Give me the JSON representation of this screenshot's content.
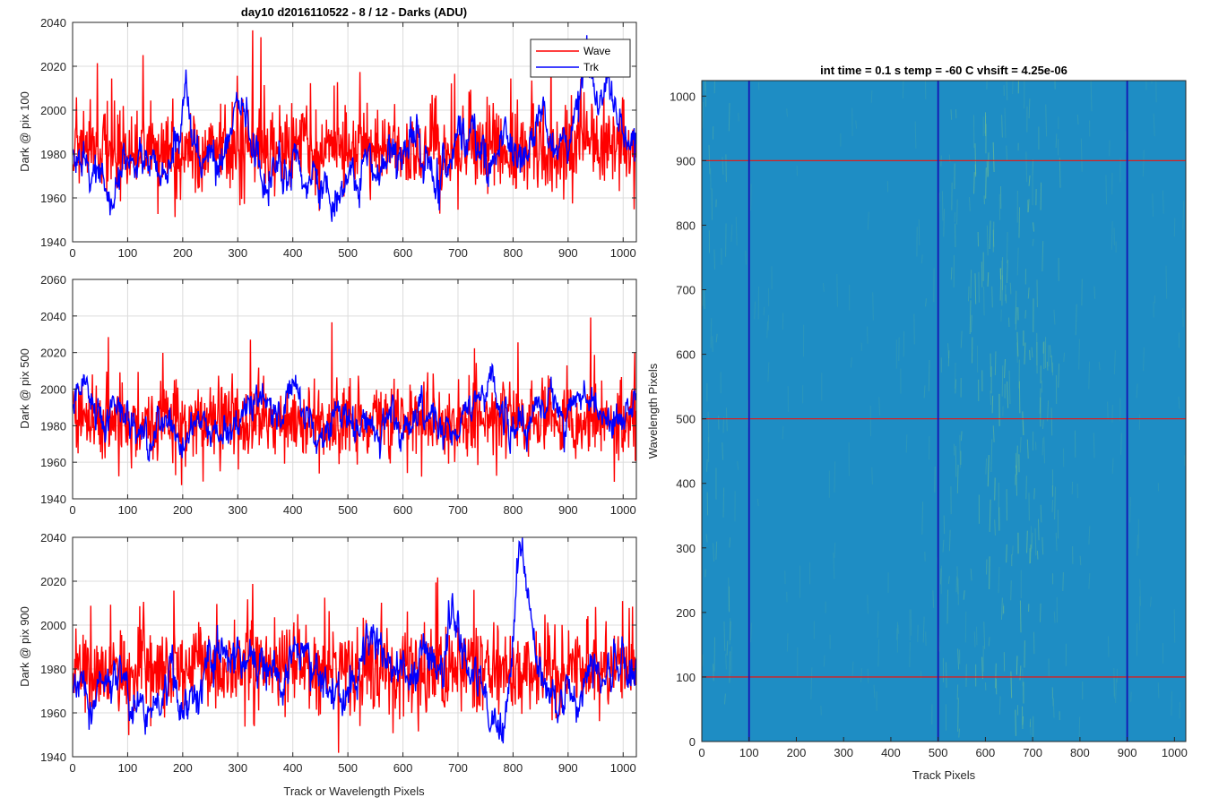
{
  "colors": {
    "wave": "#ff0000",
    "trk": "#0000ff",
    "grid": "#dcdcdc",
    "axis": "#262626",
    "image_base": "#1e8dc4",
    "image_hot": "#79c48c",
    "marker_h": "#d62020",
    "marker_v": "#1414b4"
  },
  "chart_data": [
    {
      "type": "line",
      "title": "day10 d2016110522 - 8 / 12 - Darks (ADU)",
      "xlabel": "",
      "ylabel": "Dark @ pix 100",
      "xlim": [
        0,
        1024
      ],
      "ylim": [
        1940,
        2040
      ],
      "xticks": [
        0,
        100,
        200,
        300,
        400,
        500,
        600,
        700,
        800,
        900,
        1000
      ],
      "yticks": [
        1940,
        1960,
        1980,
        2000,
        2020,
        2040
      ],
      "grid": true,
      "legend": {
        "position": "top-right",
        "entries": [
          "Wave",
          "Trk"
        ]
      },
      "series": [
        {
          "name": "Wave",
          "color": "#ff0000",
          "summary": {
            "mean": 1982,
            "noise_amplitude": 13,
            "spike_max": 2040
          }
        },
        {
          "name": "Trk",
          "color": "#0000ff",
          "summary": {
            "mean": 1978,
            "noise_amplitude": 7
          },
          "features": [
            {
              "x": 205,
              "y": 2010
            },
            {
              "x": 935,
              "y": 2018
            },
            {
              "x": 975,
              "y": 2016
            }
          ]
        }
      ]
    },
    {
      "type": "line",
      "title": "",
      "xlabel": "",
      "ylabel": "Dark @ pix 500",
      "xlim": [
        0,
        1024
      ],
      "ylim": [
        1940,
        2060
      ],
      "xticks": [
        0,
        100,
        200,
        300,
        400,
        500,
        600,
        700,
        800,
        900,
        1000
      ],
      "yticks": [
        1940,
        1960,
        1980,
        2000,
        2020,
        2040,
        2060
      ],
      "grid": true,
      "series": [
        {
          "name": "Wave",
          "color": "#ff0000",
          "summary": {
            "mean": 1982,
            "noise_amplitude": 14,
            "spike_max": 2041
          }
        },
        {
          "name": "Trk",
          "color": "#0000ff",
          "summary": {
            "mean": 1982,
            "noise_amplitude": 7
          },
          "features": [
            {
              "x": 20,
              "y": 2010
            },
            {
              "x": 400,
              "y": 2002
            },
            {
              "x": 760,
              "y": 2000
            }
          ]
        }
      ]
    },
    {
      "type": "line",
      "title": "",
      "xlabel": "Track or Wavelength Pixels",
      "ylabel": "Dark @ pix 900",
      "xlim": [
        0,
        1024
      ],
      "ylim": [
        1940,
        2040
      ],
      "xticks": [
        0,
        100,
        200,
        300,
        400,
        500,
        600,
        700,
        800,
        900,
        1000
      ],
      "yticks": [
        1940,
        1960,
        1980,
        2000,
        2020,
        2040
      ],
      "grid": true,
      "series": [
        {
          "name": "Wave",
          "color": "#ff0000",
          "summary": {
            "mean": 1980,
            "noise_amplitude": 13,
            "spike_max": 2040
          }
        },
        {
          "name": "Trk",
          "color": "#0000ff",
          "summary": {
            "mean": 1976,
            "noise_amplitude": 8
          },
          "features": [
            {
              "x": 690,
              "y": 2008
            },
            {
              "x": 815,
              "y": 2038
            },
            {
              "x": 760,
              "y": 1950
            }
          ]
        }
      ]
    },
    {
      "type": "heatmap",
      "title": "int time = 0.1 s   temp = -60 C   vhsift = 4.25e-06",
      "xlabel": "Track Pixels",
      "ylabel": "Wavelength Pixels",
      "xlim": [
        0,
        1024
      ],
      "ylim": [
        0,
        1024
      ],
      "xticks": [
        0,
        100,
        200,
        300,
        400,
        500,
        600,
        700,
        800,
        900,
        1000
      ],
      "yticks": [
        0,
        100,
        200,
        300,
        400,
        500,
        600,
        700,
        800,
        900,
        1000
      ],
      "grid": false,
      "horizontal_markers": [
        100,
        500,
        900
      ],
      "vertical_markers": [
        100,
        500,
        900
      ],
      "hot_band_x_range": [
        560,
        720
      ]
    }
  ]
}
